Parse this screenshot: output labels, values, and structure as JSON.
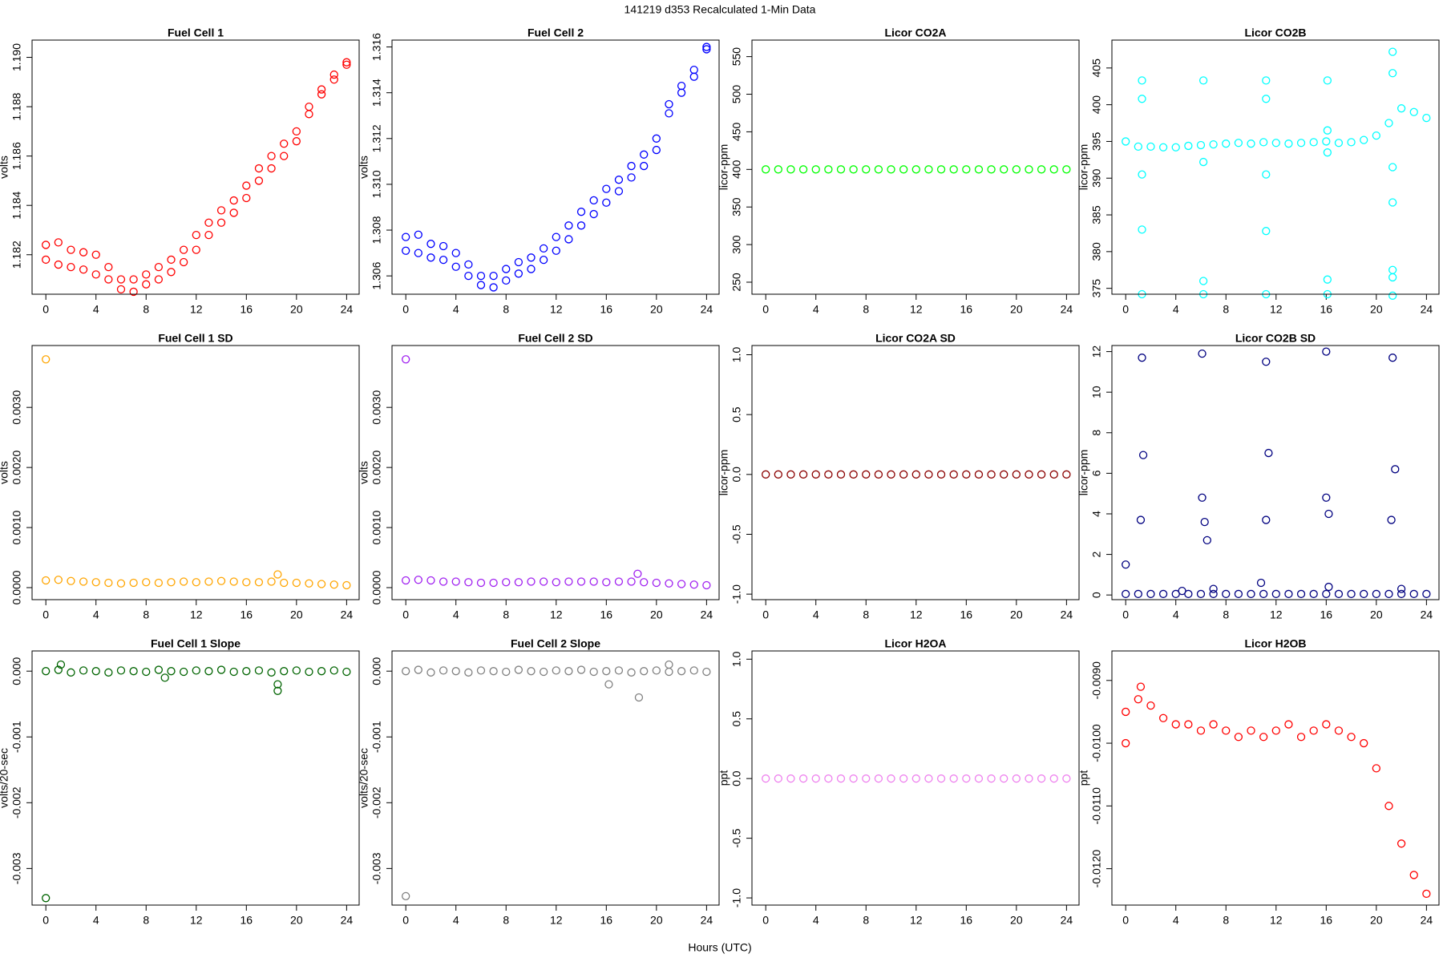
{
  "title": "141219   d353   Recalculated 1-Min Data",
  "x_label": "Hours (UTC)",
  "chart_data": [
    {
      "type": "scatter",
      "title": "Fuel Cell 1",
      "y_label": "volts",
      "color": "#ff0000",
      "x": [
        0,
        1,
        2,
        3,
        4,
        5,
        6,
        7,
        8,
        9,
        10,
        11,
        12,
        13,
        14,
        15,
        16,
        17,
        18,
        19,
        20,
        21,
        22,
        23,
        24,
        0,
        1,
        2,
        3,
        4,
        5,
        6,
        7,
        8,
        9,
        10,
        11,
        12,
        13,
        14,
        15,
        16,
        17,
        18,
        19,
        20,
        21,
        22,
        23,
        24
      ],
      "values": [
        1.1824,
        1.1825,
        1.1822,
        1.1821,
        1.182,
        1.1815,
        1.181,
        1.181,
        1.1812,
        1.1815,
        1.1818,
        1.1822,
        1.1828,
        1.1833,
        1.1838,
        1.1842,
        1.1848,
        1.1855,
        1.186,
        1.1865,
        1.187,
        1.188,
        1.1887,
        1.1893,
        1.1898,
        1.1818,
        1.1816,
        1.1815,
        1.1814,
        1.1812,
        1.181,
        1.1806,
        1.1805,
        1.1808,
        1.181,
        1.1813,
        1.1817,
        1.1822,
        1.1828,
        1.1833,
        1.1837,
        1.1843,
        1.185,
        1.1855,
        1.186,
        1.1866,
        1.1877,
        1.1885,
        1.1891,
        1.1897
      ],
      "xlim": [
        -1.1,
        25
      ],
      "xticks": [
        0,
        4,
        8,
        12,
        16,
        20,
        24
      ],
      "ylim": [
        1.1804,
        1.1907
      ],
      "yticks": [
        1.182,
        1.184,
        1.186,
        1.188,
        {
          "value": 1.19,
          "label": "1.190"
        }
      ]
    },
    {
      "type": "scatter",
      "title": "Fuel Cell 2",
      "y_label": "volts",
      "color": "#0000ff",
      "x": [
        0,
        1,
        2,
        3,
        4,
        5,
        6,
        7,
        8,
        9,
        10,
        11,
        12,
        13,
        14,
        15,
        16,
        17,
        18,
        19,
        20,
        21,
        22,
        23,
        24,
        0,
        1,
        2,
        3,
        4,
        5,
        6,
        7,
        8,
        9,
        10,
        11,
        12,
        13,
        14,
        15,
        16,
        17,
        18,
        19,
        20,
        21,
        22,
        23,
        24
      ],
      "values": [
        1.3077,
        1.3078,
        1.3074,
        1.3073,
        1.307,
        1.3065,
        1.306,
        1.306,
        1.3063,
        1.3066,
        1.3068,
        1.3072,
        1.3077,
        1.3082,
        1.3088,
        1.3093,
        1.3098,
        1.3102,
        1.3108,
        1.3113,
        1.312,
        1.3135,
        1.3143,
        1.315,
        1.316,
        1.3071,
        1.307,
        1.3068,
        1.3067,
        1.3064,
        1.306,
        1.3056,
        1.3055,
        1.3058,
        1.3061,
        1.3063,
        1.3067,
        1.3071,
        1.3076,
        1.3082,
        1.3087,
        1.3092,
        1.3097,
        1.3103,
        1.3108,
        1.3115,
        1.3131,
        1.314,
        1.3147,
        1.3159
      ],
      "xlim": [
        -1.1,
        25
      ],
      "xticks": [
        0,
        4,
        8,
        12,
        16,
        20,
        24
      ],
      "ylim": [
        1.3052,
        1.3163
      ],
      "yticks": [
        1.306,
        1.308,
        {
          "value": 1.31,
          "label": "1.310"
        },
        1.312,
        1.314,
        1.316
      ]
    },
    {
      "type": "scatter",
      "title": "Licor CO2A",
      "y_label": "licor-ppm",
      "color": "#00ff00",
      "x": [
        0,
        1,
        2,
        3,
        4,
        5,
        6,
        7,
        8,
        9,
        10,
        11,
        12,
        13,
        14,
        15,
        16,
        17,
        18,
        19,
        20,
        21,
        22,
        23,
        24
      ],
      "values": [
        400,
        400,
        400,
        400,
        400,
        400,
        400,
        400,
        400,
        400,
        400,
        400,
        400,
        400,
        400,
        400,
        400,
        400,
        400,
        400,
        400,
        400,
        400,
        400,
        400
      ],
      "xlim": [
        -1.1,
        25
      ],
      "xticks": [
        0,
        4,
        8,
        12,
        16,
        20,
        24
      ],
      "ylim": [
        234,
        572
      ],
      "yticks": [
        250,
        300,
        350,
        400,
        450,
        500,
        550
      ]
    },
    {
      "type": "scatter",
      "title": "Licor CO2B",
      "y_label": "licor-ppm",
      "color": "#00ffff",
      "x": [
        0,
        1,
        2,
        3,
        4,
        5,
        6,
        7,
        8,
        9,
        10,
        11,
        12,
        13,
        14,
        15,
        16,
        17,
        18,
        19,
        20,
        21,
        22,
        23,
        24,
        1.3,
        1.3,
        1.3,
        1.3,
        1.3,
        6.2,
        6.2,
        6.2,
        6.2,
        11.2,
        11.2,
        11.2,
        11.2,
        11.2,
        16.1,
        16.1,
        16.1,
        16.1,
        16.1,
        21.3,
        21.3,
        21.3,
        21.3,
        21.3,
        21.3,
        21.3
      ],
      "values": [
        395,
        394.3,
        394.3,
        394.2,
        394.2,
        394.4,
        394.5,
        394.6,
        394.7,
        394.8,
        394.7,
        394.9,
        394.8,
        394.7,
        394.8,
        394.9,
        395,
        394.8,
        394.9,
        395.2,
        395.8,
        397.5,
        399.5,
        399,
        398.2,
        403.3,
        374.2,
        400.8,
        390.5,
        383,
        403.3,
        374.2,
        376,
        392.2,
        403.3,
        374.2,
        400.8,
        390.5,
        382.8,
        403.3,
        374.2,
        376.2,
        393.5,
        396.5,
        407.2,
        374,
        404.3,
        391.5,
        386.7,
        377.5,
        376.5
      ],
      "xlim": [
        -1.1,
        25
      ],
      "xticks": [
        0,
        4,
        8,
        12,
        16,
        20,
        24
      ],
      "ylim": [
        374.2,
        408.8
      ],
      "yticks": [
        375,
        380,
        385,
        390,
        395,
        400,
        405
      ]
    },
    {
      "type": "scatter",
      "title": "Fuel Cell 1 SD",
      "y_label": "volts",
      "color": "#ffa500",
      "x": [
        0,
        1,
        2,
        3,
        4,
        5,
        6,
        7,
        8,
        9,
        10,
        11,
        12,
        13,
        14,
        15,
        16,
        17,
        18,
        19,
        20,
        21,
        22,
        23,
        24,
        18.5,
        0
      ],
      "values": [
        0.00012,
        0.00013,
        0.00011,
        0.0001,
        9e-05,
        8e-05,
        7e-05,
        8e-05,
        9e-05,
        8e-05,
        9e-05,
        0.0001,
        9e-05,
        0.0001,
        0.00011,
        0.0001,
        9e-05,
        9e-05,
        0.0001,
        8e-05,
        8e-05,
        7e-05,
        6e-05,
        5e-05,
        4e-05,
        0.00022,
        0.0038
      ],
      "xlim": [
        -1.1,
        25
      ],
      "xticks": [
        0,
        4,
        8,
        12,
        16,
        20,
        24
      ],
      "ylim": [
        -0.0002,
        0.00403
      ],
      "yticks": [
        {
          "value": 0,
          "label": "0.0000"
        },
        {
          "value": 0.001,
          "label": "0.0010"
        },
        {
          "value": 0.002,
          "label": "0.0020"
        },
        {
          "value": 0.003,
          "label": "0.0030"
        }
      ]
    },
    {
      "type": "scatter",
      "title": "Fuel Cell 2 SD",
      "y_label": "volts",
      "color": "#a020f0",
      "x": [
        0,
        1,
        2,
        3,
        4,
        5,
        6,
        7,
        8,
        9,
        10,
        11,
        12,
        13,
        14,
        15,
        16,
        17,
        18,
        19,
        20,
        21,
        22,
        23,
        24,
        18.5,
        0
      ],
      "values": [
        0.00012,
        0.00013,
        0.00012,
        0.0001,
        0.0001,
        9e-05,
        8e-05,
        8e-05,
        9e-05,
        9e-05,
        0.0001,
        0.0001,
        9e-05,
        0.0001,
        0.0001,
        0.0001,
        9e-05,
        0.0001,
        0.0001,
        9e-05,
        8e-05,
        7e-05,
        6e-05,
        5e-05,
        4e-05,
        0.00023,
        0.0038
      ],
      "xlim": [
        -1.1,
        25
      ],
      "xticks": [
        0,
        4,
        8,
        12,
        16,
        20,
        24
      ],
      "ylim": [
        -0.0002,
        0.00403
      ],
      "yticks": [
        {
          "value": 0,
          "label": "0.0000"
        },
        {
          "value": 0.001,
          "label": "0.0010"
        },
        {
          "value": 0.002,
          "label": "0.0020"
        },
        {
          "value": 0.003,
          "label": "0.0030"
        }
      ]
    },
    {
      "type": "scatter",
      "title": "Licor CO2A SD",
      "y_label": "licor-ppm",
      "color": "#8b0000",
      "x": [
        0,
        1,
        2,
        3,
        4,
        5,
        6,
        7,
        8,
        9,
        10,
        11,
        12,
        13,
        14,
        15,
        16,
        17,
        18,
        19,
        20,
        21,
        22,
        23,
        24
      ],
      "values": [
        0,
        0,
        0,
        0,
        0,
        0,
        0,
        0,
        0,
        0,
        0,
        0,
        0,
        0,
        0,
        0,
        0,
        0,
        0,
        0,
        0,
        0,
        0,
        0,
        0
      ],
      "xlim": [
        -1.1,
        25
      ],
      "xticks": [
        0,
        4,
        8,
        12,
        16,
        20,
        24
      ],
      "ylim": [
        -1.046,
        1.077
      ],
      "yticks": [
        {
          "value": -1,
          "label": "-1.0"
        },
        -0.5,
        {
          "value": 0,
          "label": "0.0"
        },
        0.5,
        {
          "value": 1,
          "label": "1.0"
        }
      ]
    },
    {
      "type": "scatter",
      "title": "Licor CO2B SD",
      "y_label": "licor-ppm",
      "color": "#000080",
      "x": [
        0,
        1,
        2,
        3,
        4,
        5,
        6,
        7,
        8,
        9,
        10,
        11,
        12,
        13,
        14,
        15,
        16,
        17,
        18,
        19,
        20,
        21,
        22,
        23,
        24,
        0,
        1.2,
        1.3,
        1.4,
        6.1,
        6.1,
        6.3,
        6.5,
        11.2,
        11.2,
        11.4,
        16,
        16,
        16.2,
        21.2,
        21.3,
        21.5,
        4.5,
        7,
        10.8,
        16.2,
        22
      ],
      "values": [
        0.05,
        0.05,
        0.05,
        0.05,
        0.05,
        0.05,
        0.05,
        0.05,
        0.05,
        0.05,
        0.05,
        0.05,
        0.05,
        0.05,
        0.05,
        0.05,
        0.05,
        0.05,
        0.05,
        0.05,
        0.05,
        0.05,
        0.05,
        0.05,
        0.05,
        1.5,
        3.7,
        11.7,
        6.9,
        11.9,
        4.8,
        3.6,
        2.7,
        3.7,
        11.5,
        7,
        12,
        4.8,
        4,
        3.7,
        11.7,
        6.2,
        0.2,
        0.3,
        0.6,
        0.4,
        0.3
      ],
      "xlim": [
        -1.1,
        25
      ],
      "xticks": [
        0,
        4,
        8,
        12,
        16,
        20,
        24
      ],
      "ylim": [
        -0.23,
        12.3
      ],
      "yticks": [
        0,
        2,
        4,
        6,
        8,
        10,
        12
      ]
    },
    {
      "type": "scatter",
      "title": "Fuel Cell 1 Slope",
      "y_label": "volts/20-sec",
      "color": "#006400",
      "x": [
        0,
        1,
        2,
        3,
        4,
        5,
        6,
        7,
        8,
        9,
        10,
        11,
        12,
        13,
        14,
        15,
        16,
        17,
        18,
        19,
        20,
        21,
        22,
        23,
        24,
        0,
        18.5,
        18.5,
        1.2,
        9.5
      ],
      "values": [
        0,
        2e-05,
        -2e-05,
        1e-05,
        0,
        -2e-05,
        1e-05,
        0,
        -1e-05,
        2e-05,
        0,
        -1e-05,
        1e-05,
        0,
        2e-05,
        -1e-05,
        0,
        1e-05,
        -2e-05,
        0,
        1e-05,
        -1e-05,
        0,
        1e-05,
        -1e-05,
        -0.00345,
        -0.0003,
        -0.0002,
        0.0001,
        -0.0001
      ],
      "xlim": [
        -1.1,
        25
      ],
      "xticks": [
        0,
        4,
        8,
        12,
        16,
        20,
        24
      ],
      "ylim": [
        -0.003556,
        0.000307
      ],
      "yticks": [
        {
          "value": -0.003,
          "label": "-0.003"
        },
        {
          "value": -0.002,
          "label": "-0.002"
        },
        {
          "value": -0.001,
          "label": "-0.001"
        },
        {
          "value": 0,
          "label": "0.000"
        }
      ]
    },
    {
      "type": "scatter",
      "title": "Fuel Cell 2 Slope",
      "y_label": "volts/20-sec",
      "color": "#808080",
      "x": [
        0,
        1,
        2,
        3,
        4,
        5,
        6,
        7,
        8,
        9,
        10,
        11,
        12,
        13,
        14,
        15,
        16,
        17,
        18,
        19,
        20,
        21,
        22,
        23,
        24,
        0,
        18.6,
        16.2,
        21
      ],
      "values": [
        0,
        2e-05,
        -2e-05,
        1e-05,
        0,
        -2e-05,
        1e-05,
        0,
        -1e-05,
        2e-05,
        0,
        -1e-05,
        1e-05,
        0,
        2e-05,
        -1e-05,
        0,
        1e-05,
        -2e-05,
        0,
        1e-05,
        -1e-05,
        0,
        1e-05,
        -1e-05,
        -0.00342,
        -0.0004,
        -0.0002,
        0.0001
      ],
      "xlim": [
        -1.1,
        25
      ],
      "xticks": [
        0,
        4,
        8,
        12,
        16,
        20,
        24
      ],
      "ylim": [
        -0.003556,
        0.000307
      ],
      "yticks": [
        {
          "value": -0.003,
          "label": "-0.003"
        },
        {
          "value": -0.002,
          "label": "-0.002"
        },
        {
          "value": -0.001,
          "label": "-0.001"
        },
        {
          "value": 0,
          "label": "0.000"
        }
      ]
    },
    {
      "type": "scatter",
      "title": "Licor H2OA",
      "y_label": "ppt",
      "color": "#ee82ee",
      "x": [
        0,
        1,
        2,
        3,
        4,
        5,
        6,
        7,
        8,
        9,
        10,
        11,
        12,
        13,
        14,
        15,
        16,
        17,
        18,
        19,
        20,
        21,
        22,
        23,
        24
      ],
      "values": [
        0,
        0,
        0,
        0,
        0,
        0,
        0,
        0,
        0,
        0,
        0,
        0,
        0,
        0,
        0,
        0,
        0,
        0,
        0,
        0,
        0,
        0,
        0,
        0,
        0
      ],
      "xlim": [
        -1.1,
        25
      ],
      "xticks": [
        0,
        4,
        8,
        12,
        16,
        20,
        24
      ],
      "ylim": [
        -1.06,
        1.069
      ],
      "yticks": [
        {
          "value": -1,
          "label": "-1.0"
        },
        -0.5,
        {
          "value": 0,
          "label": "0.0"
        },
        0.5,
        {
          "value": 1,
          "label": "1.0"
        }
      ]
    },
    {
      "type": "scatter",
      "title": "Licor H2OB",
      "y_label": "ppt",
      "color": "#ff0000",
      "x": [
        0,
        1,
        2,
        3,
        4,
        5,
        6,
        7,
        8,
        9,
        10,
        11,
        12,
        13,
        14,
        15,
        16,
        17,
        18,
        19,
        20,
        21,
        22,
        23,
        24,
        0,
        1.2
      ],
      "values": [
        -0.0095,
        -0.0093,
        -0.0094,
        -0.0096,
        -0.0097,
        -0.0097,
        -0.0098,
        -0.0097,
        -0.0098,
        -0.0099,
        -0.0098,
        -0.0099,
        -0.0098,
        -0.0097,
        -0.0099,
        -0.0098,
        -0.0097,
        -0.0098,
        -0.0099,
        -0.01,
        -0.0104,
        -0.011,
        -0.0116,
        -0.0121,
        -0.0124,
        -0.01,
        -0.0091
      ],
      "xlim": [
        -1.1,
        25
      ],
      "xticks": [
        0,
        4,
        8,
        12,
        16,
        20,
        24
      ],
      "ylim": [
        -0.01258,
        -0.00853
      ],
      "yticks": [
        {
          "value": -0.012,
          "label": "-0.0120"
        },
        {
          "value": -0.011,
          "label": "-0.0110"
        },
        {
          "value": -0.01,
          "label": "-0.0100"
        },
        {
          "value": -0.009,
          "label": "-0.0090"
        }
      ]
    }
  ]
}
